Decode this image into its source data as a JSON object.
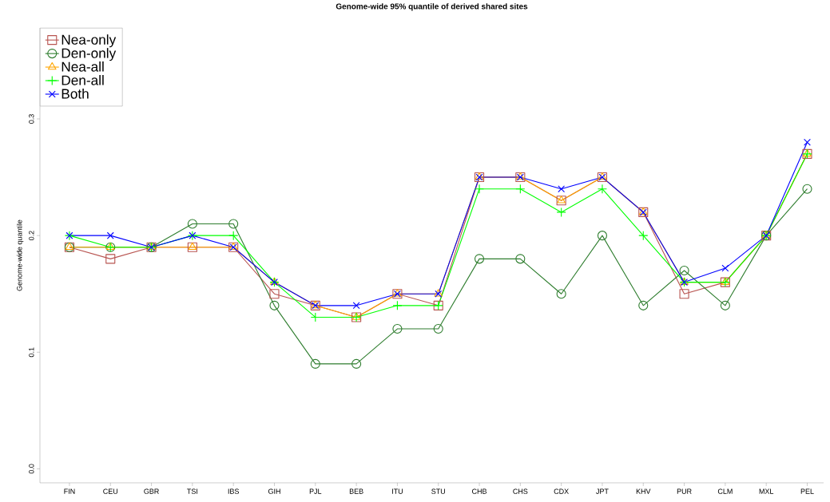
{
  "chart_data": {
    "type": "line",
    "title": "Genome-wide 95% quantile of derived shared sites",
    "ylabel": "Genome-wide quantile",
    "categories": [
      "FIN",
      "CEU",
      "GBR",
      "TSI",
      "IBS",
      "GIH",
      "PJL",
      "BEB",
      "ITU",
      "STU",
      "CHB",
      "CHS",
      "CDX",
      "JPT",
      "KHV",
      "PUR",
      "CLM",
      "MXL",
      "PEL"
    ],
    "series": [
      {
        "name": "Nea-only",
        "color": "#b85450",
        "marker": "square",
        "values": [
          0.19,
          0.18,
          0.19,
          0.19,
          0.19,
          0.15,
          0.14,
          0.13,
          0.15,
          0.14,
          0.25,
          0.25,
          0.23,
          0.25,
          0.22,
          0.15,
          0.16,
          0.2,
          0.27
        ]
      },
      {
        "name": "Den-only",
        "color": "#2e7d2e",
        "marker": "circle",
        "values": [
          0.19,
          0.19,
          0.19,
          0.21,
          0.21,
          0.14,
          0.09,
          0.09,
          0.12,
          0.12,
          0.18,
          0.18,
          0.15,
          0.2,
          0.14,
          0.17,
          0.14,
          0.2,
          0.24
        ]
      },
      {
        "name": "Nea-all",
        "color": "#ffa500",
        "marker": "triangle",
        "values": [
          0.19,
          0.19,
          0.19,
          0.19,
          0.19,
          0.16,
          0.14,
          0.13,
          0.15,
          0.15,
          0.25,
          0.25,
          0.23,
          0.25,
          0.22,
          0.16,
          0.16,
          0.2,
          0.27
        ]
      },
      {
        "name": "Den-all",
        "color": "#00ff00",
        "marker": "plus",
        "values": [
          0.2,
          0.19,
          0.19,
          0.2,
          0.2,
          0.16,
          0.13,
          0.13,
          0.14,
          0.14,
          0.24,
          0.24,
          0.22,
          0.24,
          0.2,
          0.16,
          0.16,
          0.2,
          0.27
        ]
      },
      {
        "name": "Both",
        "color": "#0000ff",
        "marker": "cross",
        "values": [
          0.2,
          0.2,
          0.19,
          0.2,
          0.19,
          0.16,
          0.14,
          0.14,
          0.15,
          0.15,
          0.25,
          0.25,
          0.24,
          0.25,
          0.22,
          0.16,
          0.172,
          0.2,
          0.28
        ]
      }
    ],
    "ylim": [
      -0.012,
      0.378
    ],
    "yticks": [
      {
        "value": 0,
        "label": "0.0"
      },
      0.1,
      0.2,
      0.3
    ],
    "legend": "top left",
    "grid": false,
    "line_style": "solid"
  }
}
